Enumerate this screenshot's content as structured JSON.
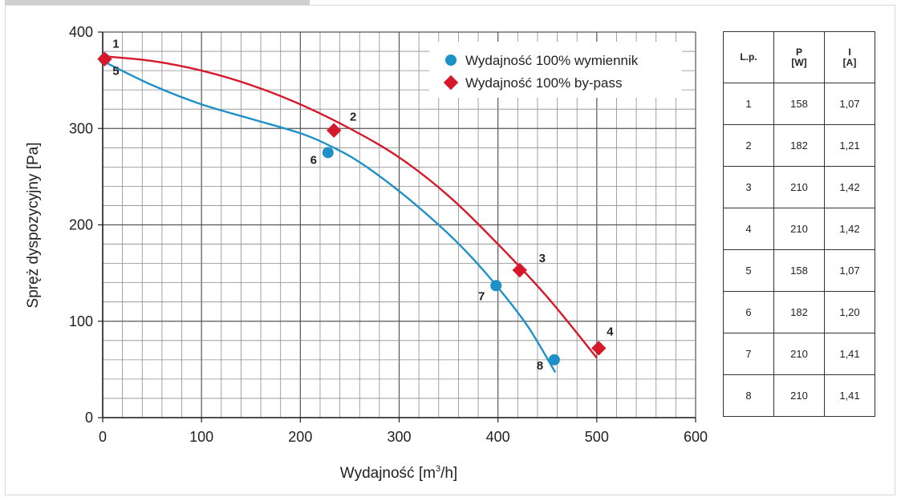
{
  "chart_data": {
    "type": "line",
    "xlabel": "Wydajność [m³/h]",
    "xlabel_main": "Wydajność [m",
    "xlabel_sup": "3",
    "xlabel_tail": "/h]",
    "ylabel": "Spręż dyspozycyjny [Pa]",
    "xlim": [
      0,
      600
    ],
    "ylim": [
      0,
      400
    ],
    "xticks": [
      0,
      100,
      200,
      300,
      400,
      500,
      600
    ],
    "yticks": [
      0,
      100,
      200,
      300,
      400
    ],
    "grid": true,
    "legend_position": "top-right",
    "series": [
      {
        "name": "Wydajność 100% wymiennik",
        "marker": "circle",
        "color": "#1e90c8",
        "curve": [
          [
            0,
            370
          ],
          [
            50,
            345
          ],
          [
            100,
            325
          ],
          [
            150,
            310
          ],
          [
            200,
            295
          ],
          [
            230,
            282
          ],
          [
            260,
            265
          ],
          [
            300,
            235
          ],
          [
            340,
            200
          ],
          [
            370,
            170
          ],
          [
            400,
            135
          ],
          [
            430,
            95
          ],
          [
            458,
            47
          ]
        ],
        "points": [
          {
            "label": "5",
            "x": 2,
            "y": 372
          },
          {
            "label": "6",
            "x": 228,
            "y": 275
          },
          {
            "label": "7",
            "x": 398,
            "y": 137
          },
          {
            "label": "8",
            "x": 457,
            "y": 60
          }
        ]
      },
      {
        "name": "Wydajność 100% by-pass",
        "marker": "diamond",
        "color": "#d7182a",
        "curve": [
          [
            0,
            375
          ],
          [
            50,
            370
          ],
          [
            100,
            360
          ],
          [
            150,
            345
          ],
          [
            200,
            325
          ],
          [
            250,
            300
          ],
          [
            300,
            270
          ],
          [
            350,
            230
          ],
          [
            400,
            180
          ],
          [
            450,
            125
          ],
          [
            500,
            62
          ]
        ],
        "points": [
          {
            "label": "1",
            "x": 2,
            "y": 372
          },
          {
            "label": "2",
            "x": 234,
            "y": 298
          },
          {
            "label": "3",
            "x": 422,
            "y": 153
          },
          {
            "label": "4",
            "x": 502,
            "y": 72
          }
        ]
      }
    ]
  },
  "table": {
    "headers": [
      {
        "line1": "L.p.",
        "line2": ""
      },
      {
        "line1": "P",
        "line2": "[W]"
      },
      {
        "line1": "I",
        "line2": "[A]"
      }
    ],
    "rows": [
      [
        "1",
        "158",
        "1,07"
      ],
      [
        "2",
        "182",
        "1,21"
      ],
      [
        "3",
        "210",
        "1,42"
      ],
      [
        "4",
        "210",
        "1,42"
      ],
      [
        "5",
        "158",
        "1,07"
      ],
      [
        "6",
        "182",
        "1,20"
      ],
      [
        "7",
        "210",
        "1,41"
      ],
      [
        "8",
        "210",
        "1,41"
      ]
    ]
  }
}
